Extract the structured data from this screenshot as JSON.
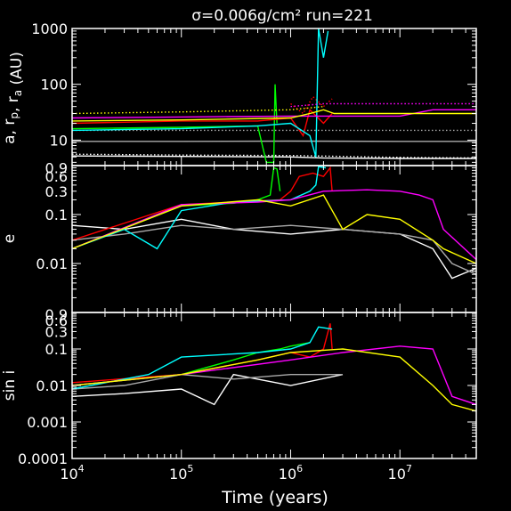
{
  "title": "σ=0.006g/cm²   run=221",
  "chart_data": [
    {
      "type": "line",
      "panel": "top",
      "ylabel": "a, r_p, r_a (AU)",
      "yscale": "log",
      "xscale": "log",
      "xlim": [
        10000,
        50000000
      ],
      "ylim": [
        3.5,
        1000
      ],
      "yticks": [
        {
          "v": 10,
          "label": "10"
        },
        {
          "v": 100,
          "label": "100"
        },
        {
          "v": 1000,
          "label": "1000"
        }
      ],
      "series": [
        {
          "color": "#ffffff",
          "style": "solid",
          "x": [
            10000,
            100000,
            1000000,
            2000000,
            10000000,
            50000000
          ],
          "y": [
            5.2,
            5.1,
            5.0,
            4.8,
            4.7,
            4.7
          ]
        },
        {
          "color": "#ffffff",
          "style": "dotted",
          "x": [
            10000,
            100000,
            1000000,
            10000000,
            50000000
          ],
          "y": [
            5.6,
            5.4,
            5.3,
            4.9,
            4.8
          ]
        },
        {
          "color": "#aaaaaa",
          "style": "solid",
          "x": [
            10000,
            100000,
            1000000,
            10000000,
            50000000
          ],
          "y": [
            9.5,
            9.5,
            9.6,
            9.5,
            9.5
          ]
        },
        {
          "color": "#aaaaaa",
          "style": "dotted",
          "x": [
            10000,
            100000,
            1000000,
            10000000,
            50000000
          ],
          "y": [
            15,
            15,
            15,
            15,
            15
          ]
        },
        {
          "color": "#00ff00",
          "style": "solid",
          "x": [
            10000,
            100000,
            500000,
            600000,
            700000,
            720000,
            750000
          ],
          "y": [
            16,
            17,
            18,
            4,
            4,
            100,
            20
          ]
        },
        {
          "color": "#ff0000",
          "style": "solid",
          "x": [
            10000,
            100000,
            500000,
            1000000,
            1300000,
            1500000,
            2000000,
            2400000
          ],
          "y": [
            20,
            22,
            22,
            25,
            12,
            35,
            20,
            30
          ]
        },
        {
          "color": "#ff0000",
          "style": "dotted",
          "x": [
            1000000,
            1300000,
            1600000,
            2000000,
            2400000
          ],
          "y": [
            45,
            30,
            60,
            40,
            55
          ]
        },
        {
          "color": "#00ffff",
          "style": "solid",
          "x": [
            10000,
            100000,
            500000,
            1000000,
            1500000,
            1700000,
            1800000,
            2000000,
            2200000
          ],
          "y": [
            15,
            16,
            18,
            20,
            12,
            5,
            1000,
            300,
            900
          ]
        },
        {
          "color": "#ff00ff",
          "style": "solid",
          "x": [
            10000,
            100000,
            1000000,
            2000000,
            10000000,
            20000000,
            50000000
          ],
          "y": [
            25,
            26,
            27,
            27,
            27,
            35,
            35
          ]
        },
        {
          "color": "#ff00ff",
          "style": "dotted",
          "x": [
            1000000,
            2000000,
            10000000,
            20000000,
            50000000
          ],
          "y": [
            40,
            45,
            45,
            45,
            45
          ]
        },
        {
          "color": "#ffff00",
          "style": "solid",
          "x": [
            10000,
            100000,
            1000000,
            1500000,
            2000000,
            2500000,
            10000000,
            50000000
          ],
          "y": [
            22,
            23,
            25,
            30,
            35,
            30,
            30,
            30
          ]
        },
        {
          "color": "#ffff00",
          "style": "dotted",
          "x": [
            10000,
            100000,
            1000000,
            2000000
          ],
          "y": [
            30,
            32,
            35,
            40
          ]
        }
      ]
    },
    {
      "type": "line",
      "panel": "middle",
      "ylabel": "e",
      "yscale": "log",
      "xscale": "log",
      "xlim": [
        10000,
        50000000
      ],
      "ylim": [
        0.001,
        1
      ],
      "yticks": [
        {
          "v": 0.01,
          "label": "0.01"
        },
        {
          "v": 0.1,
          "label": "0.1"
        },
        {
          "v": 0.3,
          "label": "0.3"
        },
        {
          "v": 0.6,
          "label": "0.6"
        },
        {
          "v": 0.9,
          "label": "0.9"
        }
      ],
      "series": [
        {
          "color": "#ffffff",
          "x": [
            10000,
            30000,
            100000,
            300000,
            1000000,
            3000000,
            10000000,
            20000000,
            30000000,
            50000000
          ],
          "y": [
            0.06,
            0.05,
            0.08,
            0.05,
            0.04,
            0.05,
            0.04,
            0.02,
            0.005,
            0.008
          ]
        },
        {
          "color": "#aaaaaa",
          "x": [
            10000,
            30000,
            100000,
            300000,
            1000000,
            3000000,
            10000000,
            20000000,
            30000000,
            50000000
          ],
          "y": [
            0.03,
            0.04,
            0.06,
            0.05,
            0.06,
            0.05,
            0.04,
            0.03,
            0.01,
            0.006
          ]
        },
        {
          "color": "#00ff00",
          "x": [
            10000,
            100000,
            300000,
            500000,
            650000,
            700000,
            750000,
            800000
          ],
          "y": [
            0.02,
            0.15,
            0.17,
            0.2,
            0.25,
            0.9,
            0.85,
            0.3
          ]
        },
        {
          "color": "#ff0000",
          "x": [
            10000,
            100000,
            300000,
            800000,
            1000000,
            1200000,
            1600000,
            2000000,
            2300000,
            2400000
          ],
          "y": [
            0.03,
            0.16,
            0.18,
            0.2,
            0.3,
            0.6,
            0.7,
            0.6,
            0.9,
            0.3
          ]
        },
        {
          "color": "#00ffff",
          "x": [
            10000,
            30000,
            60000,
            100000,
            300000,
            1000000,
            1500000,
            1700000,
            1800000,
            2100000
          ],
          "y": [
            0.02,
            0.05,
            0.02,
            0.12,
            0.18,
            0.2,
            0.3,
            0.4,
            0.95,
            0.9
          ]
        },
        {
          "color": "#ff00ff",
          "x": [
            10000,
            100000,
            500000,
            1000000,
            2000000,
            5000000,
            10000000,
            15000000,
            20000000,
            25000000,
            50000000
          ],
          "y": [
            0.02,
            0.16,
            0.18,
            0.2,
            0.3,
            0.32,
            0.3,
            0.25,
            0.2,
            0.05,
            0.012
          ]
        },
        {
          "color": "#ffff00",
          "x": [
            10000,
            100000,
            500000,
            1000000,
            2000000,
            3000000,
            5000000,
            10000000,
            20000000,
            25000000,
            50000000
          ],
          "y": [
            0.02,
            0.15,
            0.2,
            0.15,
            0.25,
            0.05,
            0.1,
            0.08,
            0.03,
            0.02,
            0.01
          ]
        }
      ]
    },
    {
      "type": "line",
      "panel": "bottom",
      "xlabel": "Time (years)",
      "ylabel": "sin i",
      "yscale": "log",
      "xscale": "log",
      "xlim": [
        10000,
        50000000
      ],
      "ylim": [
        0.0001,
        1
      ],
      "yticks": [
        {
          "v": 0.0001,
          "label": "0.0001"
        },
        {
          "v": 0.001,
          "label": "0.001"
        },
        {
          "v": 0.01,
          "label": "0.01"
        },
        {
          "v": 0.1,
          "label": "0.1"
        },
        {
          "v": 0.3,
          "label": "0.3"
        },
        {
          "v": 0.6,
          "label": "0.6"
        },
        {
          "v": 0.9,
          "label": "0.9"
        }
      ],
      "xticks": [
        {
          "exp": 4
        },
        {
          "exp": 5
        },
        {
          "exp": 6
        },
        {
          "exp": 7
        }
      ],
      "series": [
        {
          "color": "#ffffff",
          "x": [
            10000,
            30000,
            100000,
            200000,
            300000,
            1000000,
            3000000
          ],
          "y": [
            0.005,
            0.006,
            0.008,
            0.003,
            0.02,
            0.01,
            0.02
          ]
        },
        {
          "color": "#aaaaaa",
          "x": [
            10000,
            30000,
            100000,
            300000,
            1000000,
            3000000
          ],
          "y": [
            0.008,
            0.01,
            0.02,
            0.015,
            0.02,
            0.02
          ]
        },
        {
          "color": "#00ff00",
          "x": [
            10000,
            100000,
            300000,
            500000,
            800000,
            1000000,
            1500000
          ],
          "y": [
            0.01,
            0.02,
            0.05,
            0.08,
            0.1,
            0.12,
            0.15
          ]
        },
        {
          "color": "#ff0000",
          "x": [
            10000,
            100000,
            500000,
            1000000,
            1500000,
            2000000,
            2300000,
            2400000
          ],
          "y": [
            0.012,
            0.02,
            0.05,
            0.08,
            0.06,
            0.1,
            0.5,
            0.1
          ]
        },
        {
          "color": "#00ffff",
          "x": [
            10000,
            50000,
            100000,
            500000,
            1000000,
            1500000,
            1800000,
            2400000
          ],
          "y": [
            0.008,
            0.02,
            0.06,
            0.08,
            0.1,
            0.15,
            0.4,
            0.35
          ]
        },
        {
          "color": "#ff00ff",
          "x": [
            10000,
            100000,
            1000000,
            3000000,
            10000000,
            20000000,
            30000000,
            50000000
          ],
          "y": [
            0.01,
            0.02,
            0.05,
            0.08,
            0.12,
            0.1,
            0.005,
            0.003
          ]
        },
        {
          "color": "#ffff00",
          "x": [
            10000,
            100000,
            500000,
            1000000,
            3000000,
            10000000,
            20000000,
            30000000,
            50000000
          ],
          "y": [
            0.01,
            0.02,
            0.05,
            0.08,
            0.1,
            0.06,
            0.01,
            0.003,
            0.002
          ]
        }
      ]
    }
  ]
}
